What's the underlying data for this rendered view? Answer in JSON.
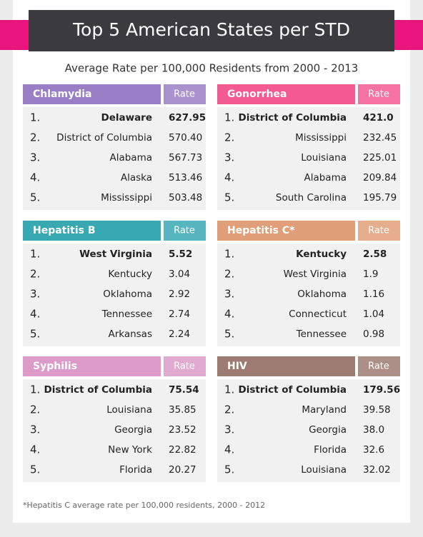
{
  "title": "Top 5 American States per STD",
  "subtitle": "Average Rate per 100,000 Residents from 2000 - 2013",
  "tables": [
    {
      "name": "Chlamydia",
      "color": "#9a7fc6",
      "rate_header": "Rate",
      "rows": [
        [
          "1.",
          "Delaware",
          "627.95"
        ],
        [
          "2.",
          "District of Columbia",
          "570.40"
        ],
        [
          "3.",
          "Alabama",
          "567.73"
        ],
        [
          "4.",
          "Alaska",
          "513.46"
        ],
        [
          "5.",
          "Mississippi",
          "503.48"
        ]
      ]
    },
    {
      "name": "Gonorrhea",
      "color": "#f25a90",
      "rate_header": "Rate",
      "rows": [
        [
          "1.",
          "District of Columbia",
          "421.0"
        ],
        [
          "2.",
          "Mississippi",
          "232.45"
        ],
        [
          "3.",
          "Louisiana",
          "225.01"
        ],
        [
          "4.",
          "Alabama",
          "209.84"
        ],
        [
          "5.",
          "South Carolina",
          "195.79"
        ]
      ]
    },
    {
      "name": "Hepatitis B",
      "color": "#38a8b3",
      "rate_header": "Rate",
      "rows": [
        [
          "1.",
          "West Virginia",
          "5.52"
        ],
        [
          "2.",
          "Kentucky",
          "3.04"
        ],
        [
          "3.",
          "Oklahoma",
          "2.92"
        ],
        [
          "4.",
          "Tennessee",
          "2.74"
        ],
        [
          "5.",
          "Arkansas",
          "2.24"
        ]
      ]
    },
    {
      "name": "Hepatitis C*",
      "color": "#e09f78",
      "rate_header": "Rate",
      "rows": [
        [
          "1.",
          "Kentucky",
          "2.58"
        ],
        [
          "2.",
          "West Virginia",
          "1.9"
        ],
        [
          "3.",
          "Oklahoma",
          "1.16"
        ],
        [
          "4.",
          "Connecticut",
          "1.04"
        ],
        [
          "5.",
          "Tennessee",
          "0.98"
        ]
      ]
    },
    {
      "name": "Syphilis",
      "color": "#dc9bc9",
      "rate_header": "Rate",
      "rows": [
        [
          "1.",
          "District of Columbia",
          "75.54"
        ],
        [
          "2.",
          "Louisiana",
          "35.85"
        ],
        [
          "3.",
          "Georgia",
          "23.52"
        ],
        [
          "4.",
          "New York",
          "22.82"
        ],
        [
          "5.",
          "Florida",
          "20.27"
        ]
      ]
    },
    {
      "name": "HIV",
      "color": "#9d7b72",
      "rate_header": "Rate",
      "rows": [
        [
          "1.",
          "District of Columbia",
          "179.56"
        ],
        [
          "2.",
          "Maryland",
          "39.58"
        ],
        [
          "3.",
          "Georgia",
          "38.0"
        ],
        [
          "4.",
          "Florida",
          "32.6"
        ],
        [
          "5.",
          "Louisiana",
          "32.02"
        ]
      ]
    }
  ],
  "footnote": "*Hepatitis C average rate per 100,000 residents, 2000 - 2012"
}
